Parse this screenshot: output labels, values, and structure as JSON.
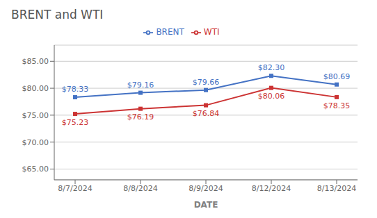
{
  "chart_data": {
    "type": "line",
    "title": "BRENT and WTI",
    "xlabel": "DATE",
    "categories": [
      "8/7/2024",
      "8/8/2024",
      "8/9/2024",
      "8/12/2024",
      "8/13/2024"
    ],
    "series": [
      {
        "name": "BRENT",
        "color": "#4472C4",
        "marker": "square",
        "values": [
          78.33,
          79.16,
          79.66,
          82.3,
          80.69
        ],
        "value_labels": [
          "$78.33",
          "$79.16",
          "$79.66",
          "$82.30",
          "$80.69"
        ]
      },
      {
        "name": "WTI",
        "color": "#CC3333",
        "marker": "square",
        "values": [
          75.23,
          76.19,
          76.84,
          80.06,
          78.35
        ],
        "value_labels": [
          "$75.23",
          "$76.19",
          "$76.84",
          "$80.06",
          "$78.35"
        ]
      }
    ],
    "ylim": [
      63.0,
      88.0
    ],
    "yticks": [
      {
        "value": 65.0,
        "label": "$65.00"
      },
      {
        "value": 70.0,
        "label": "$70.00"
      },
      {
        "value": 75.0,
        "label": "$75.00"
      },
      {
        "value": 80.0,
        "label": "$80.00"
      },
      {
        "value": 85.0,
        "label": "$85.00"
      }
    ],
    "grid": true,
    "legend": "top",
    "data_labels": true
  }
}
